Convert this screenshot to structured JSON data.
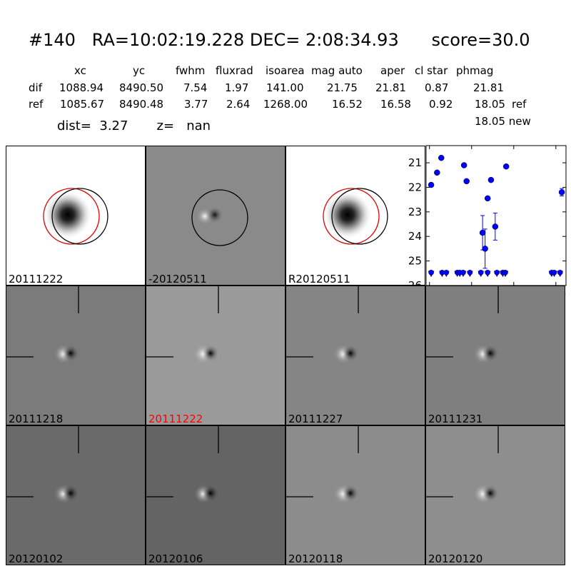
{
  "header": {
    "title": "#140   RA=10:02:19.228 DEC= 2:08:34.93      score=30.0",
    "dist_text": "dist=  3.27       z=   nan"
  },
  "stats_table": {
    "columns": [
      "xc",
      "yc",
      "fwhm",
      "fluxrad",
      "isoarea",
      "mag auto",
      "aper",
      "cl star",
      "phmag"
    ],
    "rows": [
      {
        "label": "dif",
        "values": [
          "1088.94",
          "8490.50",
          "7.54",
          "1.97",
          "141.00",
          "21.75",
          "21.81",
          "0.87",
          "21.81"
        ],
        "suffix": ""
      },
      {
        "label": "ref",
        "values": [
          "1085.67",
          "8490.48",
          "3.77",
          "2.64",
          "1268.00",
          "16.52",
          "16.58",
          "0.92",
          "18.05"
        ],
        "suffix": "ref"
      }
    ],
    "extra_line": "18.05 new"
  },
  "panels": [
    {
      "label": "20111222",
      "kind": "ref-circles",
      "bg": "#ffffff",
      "label_color": "#000000"
    },
    {
      "label": "-20120511",
      "kind": "diff-circle",
      "bg": "#8a8a8a",
      "label_color": "#000000"
    },
    {
      "label": "R20120511",
      "kind": "ref-circles",
      "bg": "#ffffff",
      "label_color": "#000000"
    },
    {
      "label": "20111218",
      "kind": "stamp",
      "bg": "#7b7b7b",
      "label_color": "#000000"
    },
    {
      "label": "20111222",
      "kind": "stamp",
      "bg": "#9a9a9a",
      "label_color": "#ff0000"
    },
    {
      "label": "20111227",
      "kind": "stamp",
      "bg": "#858585",
      "label_color": "#000000"
    },
    {
      "label": "20111231",
      "kind": "stamp",
      "bg": "#7f7f7f",
      "label_color": "#000000"
    },
    {
      "label": "20120102",
      "kind": "stamp",
      "bg": "#6a6a6a",
      "label_color": "#000000"
    },
    {
      "label": "20120106",
      "kind": "stamp",
      "bg": "#646464",
      "label_color": "#000000"
    },
    {
      "label": "20120118",
      "kind": "stamp",
      "bg": "#8c8c8c",
      "label_color": "#000000"
    },
    {
      "label": "20120120",
      "kind": "stamp",
      "bg": "#8e8e8e",
      "label_color": "#000000"
    }
  ],
  "chart_data": {
    "type": "scatter",
    "title": "",
    "xlabel": "",
    "ylabel": "",
    "xlim": [
      -4,
      162
    ],
    "ylim": [
      26,
      20.3
    ],
    "y_inverted": true,
    "x_ticks": [
      0,
      50,
      100,
      150
    ],
    "y_ticks": [
      21,
      22,
      23,
      24,
      25,
      26
    ],
    "marker_color": "#0000ff",
    "points": [
      {
        "x": 2,
        "y": 21.9
      },
      {
        "x": 9,
        "y": 21.4
      },
      {
        "x": 14,
        "y": 20.8
      },
      {
        "x": 41,
        "y": 21.1
      },
      {
        "x": 44,
        "y": 21.75
      },
      {
        "x": 63,
        "y": 23.85,
        "err": 0.7
      },
      {
        "x": 66,
        "y": 24.5,
        "err": 0.8
      },
      {
        "x": 69,
        "y": 22.45
      },
      {
        "x": 73,
        "y": 21.7
      },
      {
        "x": 78,
        "y": 23.6,
        "err": 0.55
      },
      {
        "x": 91,
        "y": 21.15
      },
      {
        "x": 157,
        "y": 22.2,
        "err": 0.15
      }
    ],
    "upper_limits": [
      {
        "x": 2,
        "y": 25.5
      },
      {
        "x": 15,
        "y": 25.5
      },
      {
        "x": 20,
        "y": 25.5
      },
      {
        "x": 33,
        "y": 25.5
      },
      {
        "x": 36,
        "y": 25.5
      },
      {
        "x": 40,
        "y": 25.5
      },
      {
        "x": 48,
        "y": 25.5
      },
      {
        "x": 61,
        "y": 25.5
      },
      {
        "x": 69,
        "y": 25.5
      },
      {
        "x": 80,
        "y": 25.5
      },
      {
        "x": 87,
        "y": 25.5
      },
      {
        "x": 90,
        "y": 25.5
      },
      {
        "x": 145,
        "y": 25.5
      },
      {
        "x": 148,
        "y": 25.5
      },
      {
        "x": 155,
        "y": 25.5
      }
    ]
  }
}
